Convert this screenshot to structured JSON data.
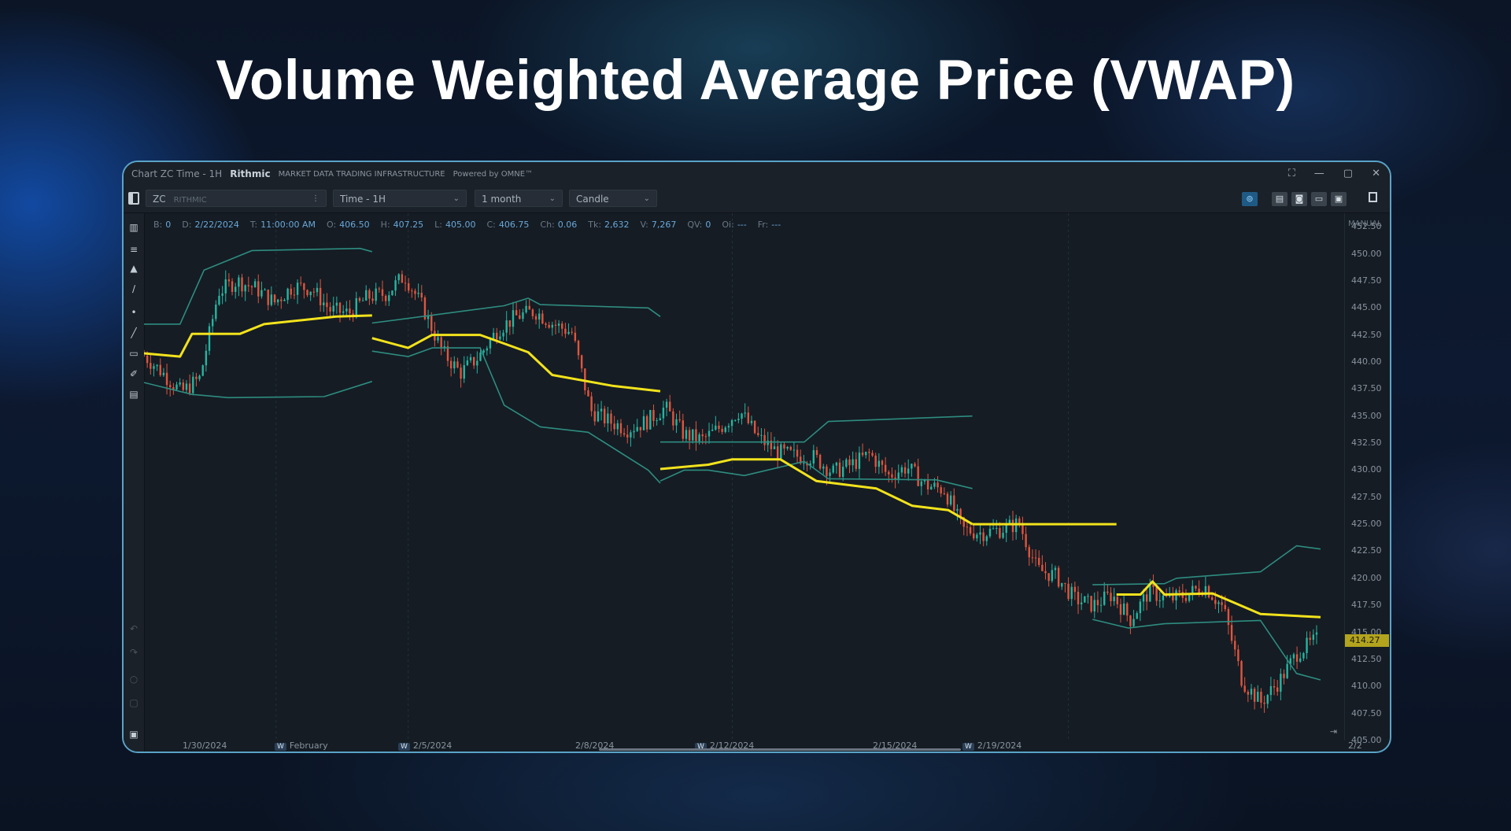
{
  "page": {
    "title": "Volume Weighted Average Price (VWAP)"
  },
  "window": {
    "title": "Chart ZC Time - 1H",
    "brand": "Rithmic",
    "brand_tagline": "MARKET DATA TRADING INFRASTRUCTURE",
    "powered_by": "Powered by OMNE™",
    "controls": [
      "⛶",
      "—",
      "▢",
      "✕"
    ]
  },
  "toolbar": {
    "symbol": "ZC",
    "symbol_sub": "RITHMIC",
    "symbol_more": "⋮",
    "timeframe": "Time - 1H",
    "range": "1 month",
    "style": "Candle",
    "caret": "⌄",
    "icons": [
      "⊚",
      "▤",
      "◙",
      "▭",
      "▣"
    ]
  },
  "sidebar": {
    "tools": [
      "▥",
      "≡",
      "▲",
      "∕",
      "•",
      "╱",
      "▭",
      "✐",
      "▤"
    ],
    "bottom_tools": [
      "↶",
      "↷",
      "○",
      "▢",
      "▣"
    ]
  },
  "info_bar": [
    {
      "label": "B:",
      "value": "0"
    },
    {
      "label": "D:",
      "value": "2/22/2024"
    },
    {
      "label": "T:",
      "value": "11:00:00 AM"
    },
    {
      "label": "O:",
      "value": "406.50"
    },
    {
      "label": "H:",
      "value": "407.25"
    },
    {
      "label": "L:",
      "value": "405.00"
    },
    {
      "label": "C:",
      "value": "406.75"
    },
    {
      "label": "Ch:",
      "value": "0.06"
    },
    {
      "label": "Tk:",
      "value": "2,632"
    },
    {
      "label": "V:",
      "value": "7,267"
    },
    {
      "label": "QV:",
      "value": "0"
    },
    {
      "label": "Oi:",
      "value": "---"
    },
    {
      "label": "Fr:",
      "value": "---"
    }
  ],
  "price_axis": {
    "title": "MANUAL",
    "ticks": [
      "452.50",
      "450.00",
      "447.50",
      "445.00",
      "442.50",
      "440.00",
      "437.50",
      "435.00",
      "432.50",
      "430.00",
      "427.50",
      "425.00",
      "422.50",
      "420.00",
      "417.50",
      "415.00",
      "412.50",
      "410.00",
      "407.50",
      "405.00"
    ],
    "current_price": "414.27"
  },
  "time_axis": {
    "labels": [
      {
        "text": "1/30/2024",
        "week": false
      },
      {
        "text": "February",
        "week": true
      },
      {
        "text": "2/5/2024",
        "week": true
      },
      {
        "text": "2/8/2024",
        "week": false
      },
      {
        "text": "2/12/2024",
        "week": true
      },
      {
        "text": "2/15/2024",
        "week": false
      },
      {
        "text": "2/19/2024",
        "week": true
      },
      {
        "text": "2/2",
        "week": false
      }
    ],
    "week_badge": "W",
    "scroll_end": "⇥"
  },
  "chart_data": {
    "type": "line",
    "title": "",
    "ylim": [
      405,
      453.75
    ],
    "colors": {
      "up": "#26b5a0",
      "down": "#e0553d",
      "vwap": "#f2e21c",
      "band": "#2e8c80",
      "bg": "#151c24"
    },
    "grid": false,
    "sessions": 42,
    "price": [
      440.6,
      439,
      437.2,
      438.5,
      446.5,
      447.5,
      446.8,
      445.5,
      447,
      446.8,
      444.8,
      444.5,
      446,
      446.3,
      448,
      445,
      441,
      439,
      440.5,
      443,
      444.2,
      444.7,
      443.5,
      442.7,
      435.5,
      434.5,
      433.8,
      434.5,
      435.8,
      433.3,
      432.8,
      434,
      435.5,
      433,
      431.7,
      431.3,
      431.2,
      429.8,
      430.5,
      431.5,
      429.5,
      430.3,
      428.6,
      428.2,
      424.5,
      424.2,
      424.5,
      425.1,
      420.8,
      420.2,
      418.1,
      417.5,
      418.5,
      416.2,
      418.8,
      418,
      418.5,
      419.3,
      417.2,
      410.5,
      408.5,
      410.5,
      413.2,
      414.3
    ],
    "vwap": [
      [
        [
          0,
          440.8
        ],
        [
          3,
          440.5
        ],
        [
          4,
          442.6
        ],
        [
          8,
          442.6
        ],
        [
          10,
          443.5
        ],
        [
          16,
          444.2
        ],
        [
          19,
          444.3
        ]
      ],
      [
        [
          19,
          442.2
        ],
        [
          22,
          441.3
        ],
        [
          24,
          442.5
        ],
        [
          28,
          442.5
        ],
        [
          32,
          440.9
        ],
        [
          34,
          438.8
        ],
        [
          39,
          437.8
        ],
        [
          43,
          437.3
        ]
      ],
      [
        [
          43,
          430.1
        ],
        [
          47,
          430.5
        ],
        [
          49,
          431
        ],
        [
          53,
          431
        ],
        [
          56,
          429
        ],
        [
          61,
          428.3
        ],
        [
          64,
          426.7
        ],
        [
          67,
          426.3
        ],
        [
          69,
          425
        ]
      ],
      [
        [
          69,
          425
        ],
        [
          81,
          425
        ]
      ],
      [
        [
          81,
          418.5
        ],
        [
          83,
          418.5
        ],
        [
          84,
          419.7
        ],
        [
          85,
          418.5
        ],
        [
          89,
          418.6
        ],
        [
          93,
          416.7
        ],
        [
          98,
          416.4
        ]
      ]
    ],
    "upper_band": [
      [
        [
          0,
          443.5
        ],
        [
          3,
          443.5
        ],
        [
          5,
          448.5
        ],
        [
          9,
          450.3
        ],
        [
          18,
          450.5
        ],
        [
          19,
          450.2
        ]
      ],
      [
        [
          19,
          443.6
        ],
        [
          30,
          445.2
        ],
        [
          32,
          445.9
        ],
        [
          33,
          445.3
        ],
        [
          42,
          445
        ],
        [
          43,
          444.2
        ]
      ],
      [
        [
          43,
          432.6
        ],
        [
          55,
          432.6
        ],
        [
          57,
          434.5
        ],
        [
          69,
          435
        ]
      ],
      [
        [
          79,
          419.4
        ],
        [
          85,
          419.5
        ],
        [
          86,
          420
        ],
        [
          93,
          420.6
        ],
        [
          96,
          423
        ],
        [
          98,
          422.7
        ]
      ]
    ],
    "lower_band": [
      [
        [
          0,
          438.1
        ],
        [
          4,
          437
        ],
        [
          7,
          436.7
        ],
        [
          15,
          436.8
        ],
        [
          19,
          438.2
        ]
      ],
      [
        [
          19,
          441
        ],
        [
          22,
          440.5
        ],
        [
          24,
          441.3
        ],
        [
          28,
          441.3
        ],
        [
          30,
          436
        ],
        [
          33,
          434
        ],
        [
          37,
          433.5
        ],
        [
          42,
          430
        ],
        [
          43,
          428.8
        ]
      ],
      [
        [
          43,
          429
        ],
        [
          45,
          430
        ],
        [
          47,
          430
        ],
        [
          50,
          429.5
        ],
        [
          55,
          430.8
        ],
        [
          57,
          429.2
        ],
        [
          66,
          429.1
        ],
        [
          69,
          428.3
        ]
      ],
      [
        [
          79,
          416.2
        ],
        [
          82,
          415.4
        ],
        [
          85,
          415.8
        ],
        [
          93,
          416.1
        ],
        [
          96,
          411.2
        ],
        [
          98,
          410.6
        ]
      ]
    ]
  }
}
